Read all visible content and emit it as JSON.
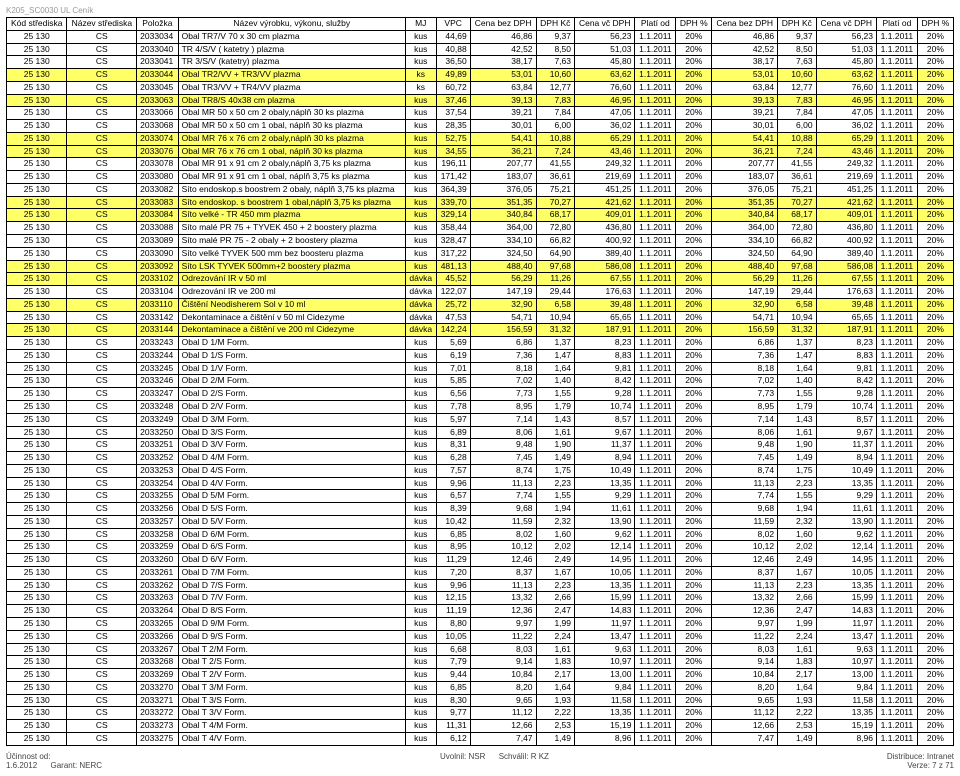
{
  "header_small": "K205_SC0030 UL Ceník",
  "columns": [
    "Kód střediska",
    "Název střediska",
    "Položka",
    "Název výrobku, výkonu, služby",
    "MJ",
    "VPC",
    "Cena bez DPH",
    "DPH Kč",
    "Cena vč DPH",
    "Platí od",
    "DPH %",
    "Cena bez DPH",
    "DPH Kč",
    "Cena vč DPH",
    "Platí od",
    "DPH %"
  ],
  "footer": {
    "left1": "Účinnost od:",
    "left2": "1.6.2012",
    "left3": "Garant: NERC",
    "mid1": "Uvolnil: NSR",
    "mid2": "Schválil: R KZ",
    "right1": "Distribuce: Intranet",
    "right2": "Verze: 7",
    "right3": "z 71"
  },
  "rows": [
    [
      "25 130",
      "CS",
      "2033034",
      "Obal TR7/V            70 x 30 cm  plazma",
      "kus",
      "44,69",
      "46,86",
      "9,37",
      "56,23",
      "1.1.2011",
      "20%",
      "46,86",
      "9,37",
      "56,23",
      "1.1.2011",
      "20%",
      0
    ],
    [
      "25 130",
      "CS",
      "2033040",
      "TR 4/S/V  ( katetry )   plazma",
      "kus",
      "40,88",
      "42,52",
      "8,50",
      "51,03",
      "1.1.2011",
      "20%",
      "42,52",
      "8,50",
      "51,03",
      "1.1.2011",
      "20%",
      0
    ],
    [
      "25 130",
      "CS",
      "2033041",
      "TR 3/S/V   (katetry)  plazma",
      "kus",
      "36,50",
      "38,17",
      "7,63",
      "45,80",
      "1.1.2011",
      "20%",
      "38,17",
      "7,63",
      "45,80",
      "1.1.2011",
      "20%",
      0
    ],
    [
      "25 130",
      "CS",
      "2033044",
      "Obal TR2/VV + TR3/VV        plazma",
      "ks",
      "49,89",
      "53,01",
      "10,60",
      "63,62",
      "1.1.2011",
      "20%",
      "53,01",
      "10,60",
      "63,62",
      "1.1.2011",
      "20%",
      1
    ],
    [
      "25 130",
      "CS",
      "2033045",
      "Obal TR3/VV + TR4/VV         plazma",
      "ks",
      "60,72",
      "63,84",
      "12,77",
      "76,60",
      "1.1.2011",
      "20%",
      "63,84",
      "12,77",
      "76,60",
      "1.1.2011",
      "20%",
      0
    ],
    [
      "25 130",
      "CS",
      "2033063",
      "Obal TR8/S  40x38 cm         plazma",
      "kus",
      "37,46",
      "39,13",
      "7,83",
      "46,95",
      "1.1.2011",
      "20%",
      "39,13",
      "7,83",
      "46,95",
      "1.1.2011",
      "20%",
      1
    ],
    [
      "25 130",
      "CS",
      "2033066",
      "Obal MR 50 x 50 cm              2 obaly,náplň 30 ks  plazma",
      "kus",
      "37,54",
      "39,21",
      "7,84",
      "47,05",
      "1.1.2011",
      "20%",
      "39,21",
      "7,84",
      "47,05",
      "1.1.2011",
      "20%",
      0
    ],
    [
      "25 130",
      "CS",
      "2033068",
      "Obal MR 50 x 50 cm              1 obal, náplň 30 ks  plazma",
      "kus",
      "28,35",
      "30,01",
      "6,00",
      "36,02",
      "1.1.2011",
      "20%",
      "30,01",
      "6,00",
      "36,02",
      "1.1.2011",
      "20%",
      0
    ],
    [
      "25 130",
      "CS",
      "2033074",
      "Obal MR 76 x 76 cm              2 obaly,náplň 30 ks  plazma",
      "kus",
      "52,75",
      "54,41",
      "10,88",
      "65,29",
      "1.1.2011",
      "20%",
      "54,41",
      "10,88",
      "65,29",
      "1.1.2011",
      "20%",
      1
    ],
    [
      "25 130",
      "CS",
      "2033076",
      "Obal MR 76 x 76 cm              1 obal, náplň 30 ks  plazma",
      "kus",
      "34,55",
      "36,21",
      "7,24",
      "43,46",
      "1.1.2011",
      "20%",
      "36,21",
      "7,24",
      "43,46",
      "1.1.2011",
      "20%",
      1
    ],
    [
      "25 130",
      "CS",
      "2033078",
      "Obal MR 91 x 91 cm              2 obaly,náplň 3,75 ks  plazma",
      "kus",
      "196,11",
      "207,77",
      "41,55",
      "249,32",
      "1.1.2011",
      "20%",
      "207,77",
      "41,55",
      "249,32",
      "1.1.2011",
      "20%",
      0
    ],
    [
      "25 130",
      "CS",
      "2033080",
      "Obal MR 91 x 91 cm              1 obal, náplň 3,75 ks  plazma",
      "kus",
      "171,42",
      "183,07",
      "36,61",
      "219,69",
      "1.1.2011",
      "20%",
      "183,07",
      "36,61",
      "219,69",
      "1.1.2011",
      "20%",
      0
    ],
    [
      "25 130",
      "CS",
      "2033082",
      "Síto endoskop.s boostrem        2 obaly, náplň 3,75 ks  plazma",
      "kus",
      "364,39",
      "376,05",
      "75,21",
      "451,25",
      "1.1.2011",
      "20%",
      "376,05",
      "75,21",
      "451,25",
      "1.1.2011",
      "20%",
      0
    ],
    [
      "25 130",
      "CS",
      "2033083",
      "Síto endoskop. s boostrem      1 obal,náplň 3,75 ks  plazma",
      "kus",
      "339,70",
      "351,35",
      "70,27",
      "421,62",
      "1.1.2011",
      "20%",
      "351,35",
      "70,27",
      "421,62",
      "1.1.2011",
      "20%",
      1
    ],
    [
      "25 130",
      "CS",
      "2033084",
      "Síto velké - TR 450 mm plazma",
      "kus",
      "329,14",
      "340,84",
      "68,17",
      "409,01",
      "1.1.2011",
      "20%",
      "340,84",
      "68,17",
      "409,01",
      "1.1.2011",
      "20%",
      1
    ],
    [
      "25 130",
      "CS",
      "2033088",
      "Síto malé PR 75 + TYVEK 450 + 2 boostery plazma",
      "kus",
      "358,44",
      "364,00",
      "72,80",
      "436,80",
      "1.1.2011",
      "20%",
      "364,00",
      "72,80",
      "436,80",
      "1.1.2011",
      "20%",
      0
    ],
    [
      "25 130",
      "CS",
      "2033089",
      "Síto malé PR 75 - 2 obaly + 2 boostery plazma",
      "kus",
      "328,47",
      "334,10",
      "66,82",
      "400,92",
      "1.1.2011",
      "20%",
      "334,10",
      "66,82",
      "400,92",
      "1.1.2011",
      "20%",
      0
    ],
    [
      "25 130",
      "CS",
      "2033090",
      "Síto velké TYVEK 500 mm bez boosteru plazma",
      "kus",
      "317,22",
      "324,50",
      "64,90",
      "389,40",
      "1.1.2011",
      "20%",
      "324,50",
      "64,90",
      "389,40",
      "1.1.2011",
      "20%",
      0
    ],
    [
      "25 130",
      "CS",
      "2033092",
      "Síto LSK TYVEK 500mm+2 boostery  plazma",
      "kus",
      "481,13",
      "488,40",
      "97,68",
      "586,08",
      "1.1.2011",
      "20%",
      "488,40",
      "97,68",
      "586,08",
      "1.1.2011",
      "20%",
      1
    ],
    [
      "25 130",
      "CS",
      "2033102",
      "Odrezování IR                 v 50 ml",
      "dávka",
      "45,52",
      "56,29",
      "11,26",
      "67,55",
      "1.1.2011",
      "20%",
      "56,29",
      "11,26",
      "67,55",
      "1.1.2011",
      "20%",
      1
    ],
    [
      "25 130",
      "CS",
      "2033104",
      "Odrezování IR                ve 200 ml",
      "dávka",
      "122,07",
      "147,19",
      "29,44",
      "176,63",
      "1.1.2011",
      "20%",
      "147,19",
      "29,44",
      "176,63",
      "1.1.2011",
      "20%",
      0
    ],
    [
      "25 130",
      "CS",
      "2033110",
      "Čištění Neodisherem Sol    v 10 ml",
      "dávka",
      "25,72",
      "32,90",
      "6,58",
      "39,48",
      "1.1.2011",
      "20%",
      "32,90",
      "6,58",
      "39,48",
      "1.1.2011",
      "20%",
      1
    ],
    [
      "25 130",
      "CS",
      "2033142",
      "Dekontaminace a čištění       v 50 ml Cidezyme",
      "dávka",
      "47,53",
      "54,71",
      "10,94",
      "65,65",
      "1.1.2011",
      "20%",
      "54,71",
      "10,94",
      "65,65",
      "1.1.2011",
      "20%",
      0
    ],
    [
      "25 130",
      "CS",
      "2033144",
      "Dekontaminace a čištění      ve 200 ml Cidezyme",
      "dávka",
      "142,24",
      "156,59",
      "31,32",
      "187,91",
      "1.1.2011",
      "20%",
      "156,59",
      "31,32",
      "187,91",
      "1.1.2011",
      "20%",
      1
    ],
    [
      "25 130",
      "CS",
      "2033243",
      "Obal D 1/M   Form.",
      "kus",
      "5,69",
      "6,86",
      "1,37",
      "8,23",
      "1.1.2011",
      "20%",
      "6,86",
      "1,37",
      "8,23",
      "1.1.2011",
      "20%",
      0
    ],
    [
      "25 130",
      "CS",
      "2033244",
      "Obal D 1/S   Form.",
      "kus",
      "6,19",
      "7,36",
      "1,47",
      "8,83",
      "1.1.2011",
      "20%",
      "7,36",
      "1,47",
      "8,83",
      "1.1.2011",
      "20%",
      0
    ],
    [
      "25 130",
      "CS",
      "2033245",
      "Obal D 1/V   Form.",
      "kus",
      "7,01",
      "8,18",
      "1,64",
      "9,81",
      "1.1.2011",
      "20%",
      "8,18",
      "1,64",
      "9,81",
      "1.1.2011",
      "20%",
      0
    ],
    [
      "25 130",
      "CS",
      "2033246",
      "Obal D 2/M   Form.",
      "kus",
      "5,85",
      "7,02",
      "1,40",
      "8,42",
      "1.1.2011",
      "20%",
      "7,02",
      "1,40",
      "8,42",
      "1.1.2011",
      "20%",
      0
    ],
    [
      "25 130",
      "CS",
      "2033247",
      "Obal D 2/S   Form.",
      "kus",
      "6,56",
      "7,73",
      "1,55",
      "9,28",
      "1.1.2011",
      "20%",
      "7,73",
      "1,55",
      "9,28",
      "1.1.2011",
      "20%",
      0
    ],
    [
      "25 130",
      "CS",
      "2033248",
      "Obal D 2/V   Form.",
      "kus",
      "7,78",
      "8,95",
      "1,79",
      "10,74",
      "1.1.2011",
      "20%",
      "8,95",
      "1,79",
      "10,74",
      "1.1.2011",
      "20%",
      0
    ],
    [
      "25 130",
      "CS",
      "2033249",
      "Obal D 3/M   Form.",
      "kus",
      "5,97",
      "7,14",
      "1,43",
      "8,57",
      "1.1.2011",
      "20%",
      "7,14",
      "1,43",
      "8,57",
      "1.1.2011",
      "20%",
      0
    ],
    [
      "25 130",
      "CS",
      "2033250",
      "Obal D 3/S   Form.",
      "kus",
      "6,89",
      "8,06",
      "1,61",
      "9,67",
      "1.1.2011",
      "20%",
      "8,06",
      "1,61",
      "9,67",
      "1.1.2011",
      "20%",
      0
    ],
    [
      "25 130",
      "CS",
      "2033251",
      "Obal D 3/V   Form.",
      "kus",
      "8,31",
      "9,48",
      "1,90",
      "11,37",
      "1.1.2011",
      "20%",
      "9,48",
      "1,90",
      "11,37",
      "1.1.2011",
      "20%",
      0
    ],
    [
      "25 130",
      "CS",
      "2033252",
      "Obal D 4/M   Form.",
      "kus",
      "6,28",
      "7,45",
      "1,49",
      "8,94",
      "1.1.2011",
      "20%",
      "7,45",
      "1,49",
      "8,94",
      "1.1.2011",
      "20%",
      0
    ],
    [
      "25 130",
      "CS",
      "2033253",
      "Obal D 4/S   Form.",
      "kus",
      "7,57",
      "8,74",
      "1,75",
      "10,49",
      "1.1.2011",
      "20%",
      "8,74",
      "1,75",
      "10,49",
      "1.1.2011",
      "20%",
      0
    ],
    [
      "25 130",
      "CS",
      "2033254",
      "Obal D 4/V   Form.",
      "kus",
      "9,96",
      "11,13",
      "2,23",
      "13,35",
      "1.1.2011",
      "20%",
      "11,13",
      "2,23",
      "13,35",
      "1.1.2011",
      "20%",
      0
    ],
    [
      "25 130",
      "CS",
      "2033255",
      "Obal D 5/M   Form.",
      "kus",
      "6,57",
      "7,74",
      "1,55",
      "9,29",
      "1.1.2011",
      "20%",
      "7,74",
      "1,55",
      "9,29",
      "1.1.2011",
      "20%",
      0
    ],
    [
      "25 130",
      "CS",
      "2033256",
      "Obal D 5/S   Form.",
      "kus",
      "8,39",
      "9,68",
      "1,94",
      "11,61",
      "1.1.2011",
      "20%",
      "9,68",
      "1,94",
      "11,61",
      "1.1.2011",
      "20%",
      0
    ],
    [
      "25 130",
      "CS",
      "2033257",
      "Obal D 5/V   Form.",
      "kus",
      "10,42",
      "11,59",
      "2,32",
      "13,90",
      "1.1.2011",
      "20%",
      "11,59",
      "2,32",
      "13,90",
      "1.1.2011",
      "20%",
      0
    ],
    [
      "25 130",
      "CS",
      "2033258",
      "Obal D 6/M   Form.",
      "kus",
      "6,85",
      "8,02",
      "1,60",
      "9,62",
      "1.1.2011",
      "20%",
      "8,02",
      "1,60",
      "9,62",
      "1.1.2011",
      "20%",
      0
    ],
    [
      "25 130",
      "CS",
      "2033259",
      "Obal D 6/S   Form.",
      "kus",
      "8,95",
      "10,12",
      "2,02",
      "12,14",
      "1.1.2011",
      "20%",
      "10,12",
      "2,02",
      "12,14",
      "1.1.2011",
      "20%",
      0
    ],
    [
      "25 130",
      "CS",
      "2033260",
      "Obal D 6/V   Form.",
      "kus",
      "11,29",
      "12,46",
      "2,49",
      "14,95",
      "1.1.2011",
      "20%",
      "12,46",
      "2,49",
      "14,95",
      "1.1.2011",
      "20%",
      0
    ],
    [
      "25 130",
      "CS",
      "2033261",
      "Obal D 7/M   Form.",
      "kus",
      "7,20",
      "8,37",
      "1,67",
      "10,05",
      "1.1.2011",
      "20%",
      "8,37",
      "1,67",
      "10,05",
      "1.1.2011",
      "20%",
      0
    ],
    [
      "25 130",
      "CS",
      "2033262",
      "Obal D 7/S   Form.",
      "kus",
      "9,96",
      "11,13",
      "2,23",
      "13,35",
      "1.1.2011",
      "20%",
      "11,13",
      "2,23",
      "13,35",
      "1.1.2011",
      "20%",
      0
    ],
    [
      "25 130",
      "CS",
      "2033263",
      "Obal D 7/V   Form.",
      "kus",
      "12,15",
      "13,32",
      "2,66",
      "15,99",
      "1.1.2011",
      "20%",
      "13,32",
      "2,66",
      "15,99",
      "1.1.2011",
      "20%",
      0
    ],
    [
      "25 130",
      "CS",
      "2033264",
      "Obal D 8/S   Form.",
      "kus",
      "11,19",
      "12,36",
      "2,47",
      "14,83",
      "1.1.2011",
      "20%",
      "12,36",
      "2,47",
      "14,83",
      "1.1.2011",
      "20%",
      0
    ],
    [
      "25 130",
      "CS",
      "2033265",
      "Obal D 9/M   Form.",
      "kus",
      "8,80",
      "9,97",
      "1,99",
      "11,97",
      "1.1.2011",
      "20%",
      "9,97",
      "1,99",
      "11,97",
      "1.1.2011",
      "20%",
      0
    ],
    [
      "25 130",
      "CS",
      "2033266",
      "Obal D 9/S   Form.",
      "kus",
      "10,05",
      "11,22",
      "2,24",
      "13,47",
      "1.1.2011",
      "20%",
      "11,22",
      "2,24",
      "13,47",
      "1.1.2011",
      "20%",
      0
    ],
    [
      "25 130",
      "CS",
      "2033267",
      "Obal T 2/M   Form.",
      "kus",
      "6,68",
      "8,03",
      "1,61",
      "9,63",
      "1.1.2011",
      "20%",
      "8,03",
      "1,61",
      "9,63",
      "1.1.2011",
      "20%",
      0
    ],
    [
      "25 130",
      "CS",
      "2033268",
      "Obal T 2/S   Form.",
      "kus",
      "7,79",
      "9,14",
      "1,83",
      "10,97",
      "1.1.2011",
      "20%",
      "9,14",
      "1,83",
      "10,97",
      "1.1.2011",
      "20%",
      0
    ],
    [
      "25 130",
      "CS",
      "2033269",
      "Obal T 2/V   Form.",
      "kus",
      "9,44",
      "10,84",
      "2,17",
      "13,00",
      "1.1.2011",
      "20%",
      "10,84",
      "2,17",
      "13,00",
      "1.1.2011",
      "20%",
      0
    ],
    [
      "25 130",
      "CS",
      "2033270",
      "Obal T 3/M   Form.",
      "kus",
      "6,85",
      "8,20",
      "1,64",
      "9,84",
      "1.1.2011",
      "20%",
      "8,20",
      "1,64",
      "9,84",
      "1.1.2011",
      "20%",
      0
    ],
    [
      "25 130",
      "CS",
      "2033271",
      "Obal T 3/S   Form.",
      "kus",
      "8,30",
      "9,65",
      "1,93",
      "11,58",
      "1.1.2011",
      "20%",
      "9,65",
      "1,93",
      "11,58",
      "1.1.2011",
      "20%",
      0
    ],
    [
      "25 130",
      "CS",
      "2033272",
      "Obal T 3/V   Form.",
      "kus",
      "9,77",
      "11,12",
      "2,22",
      "13,35",
      "1.1.2011",
      "20%",
      "11,12",
      "2,22",
      "13,35",
      "1.1.2011",
      "20%",
      0
    ],
    [
      "25 130",
      "CS",
      "2033273",
      "Obal T 4/M   Form.",
      "kus",
      "11,31",
      "12,66",
      "2,53",
      "15,19",
      "1.1.2011",
      "20%",
      "12,66",
      "2,53",
      "15,19",
      "1.1.2011",
      "20%",
      0
    ],
    [
      "25 130",
      "CS",
      "2033275",
      "Obal T 4/V   Form.",
      "kus",
      "6,12",
      "7,47",
      "1,49",
      "8,96",
      "1.1.2011",
      "20%",
      "7,47",
      "1,49",
      "8,96",
      "1.1.2011",
      "20%",
      0
    ]
  ]
}
